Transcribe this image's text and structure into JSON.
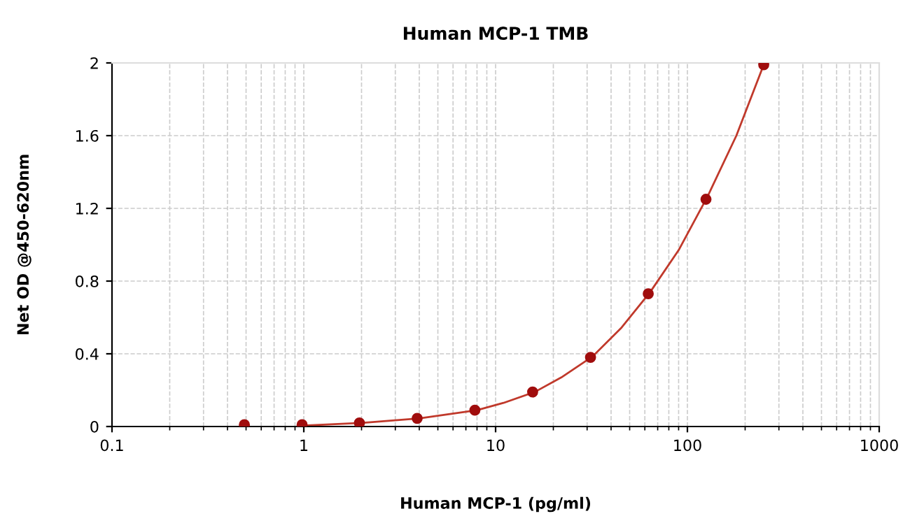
{
  "chart_data": {
    "type": "scatter",
    "title": "Human MCP-1 TMB",
    "xlabel": "Human MCP-1 (pg/ml)",
    "ylabel": "Net OD @450-620nm",
    "series": [
      {
        "color": "#a00d0d",
        "marker": "circle",
        "x": [
          0.49,
          0.98,
          1.95,
          3.9,
          7.8,
          15.6,
          31.25,
          62.5,
          125,
          250
        ],
        "values": [
          0.01,
          0.01,
          0.02,
          0.045,
          0.09,
          0.19,
          0.38,
          0.73,
          1.25,
          1.99
        ]
      },
      {
        "type": "line",
        "marker": "none",
        "color": "#c0392b",
        "x": [
          1,
          2,
          4,
          8,
          11,
          16,
          22,
          32,
          45,
          64,
          90,
          128,
          180,
          250
        ],
        "values": [
          0.005,
          0.02,
          0.045,
          0.09,
          0.13,
          0.19,
          0.27,
          0.385,
          0.54,
          0.74,
          0.97,
          1.27,
          1.6,
          1.99
        ]
      }
    ],
    "log": "x",
    "xlim": [
      0.1,
      1000
    ],
    "xticks": [
      0.1,
      1,
      10,
      100,
      1000
    ],
    "ylim": [
      0,
      2
    ],
    "yticks": [
      0,
      0.4,
      0.8,
      1.2,
      1.6,
      2
    ],
    "grid": true,
    "legend": false
  }
}
